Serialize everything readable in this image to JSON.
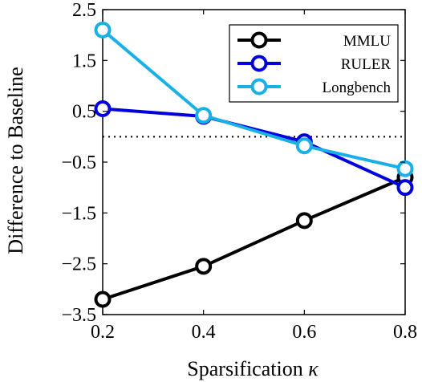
{
  "chart_data": {
    "type": "line",
    "x": [
      0.2,
      0.4,
      0.6,
      0.8
    ],
    "x_ticks": [
      "0.2",
      "0.4",
      "0.6",
      "0.8"
    ],
    "y_ticks": [
      "2.5",
      "1.5",
      "0.5",
      "−0.5",
      "−1.5",
      "−2.5",
      "−3.5"
    ],
    "y_tick_values": [
      2.5,
      1.5,
      0.5,
      -0.5,
      -1.5,
      -2.5,
      -3.5
    ],
    "xlabel": "Sparsification",
    "xlabel_symbol": "κ",
    "ylabel": "Difference to Baseline",
    "xlim": [
      0.2,
      0.8
    ],
    "ylim": [
      -3.5,
      2.5
    ],
    "baseline": 0,
    "legend_position": "top-right",
    "series": [
      {
        "name": "MMLU",
        "color": "#000000",
        "values": [
          -3.2,
          -2.55,
          -1.65,
          -0.8
        ]
      },
      {
        "name": "RULER",
        "color": "#0000dd",
        "values": [
          0.55,
          0.4,
          -0.1,
          -1.0
        ]
      },
      {
        "name": "Longbench",
        "color": "#1ab0e6",
        "values": [
          2.1,
          0.42,
          -0.18,
          -0.63
        ]
      }
    ]
  }
}
